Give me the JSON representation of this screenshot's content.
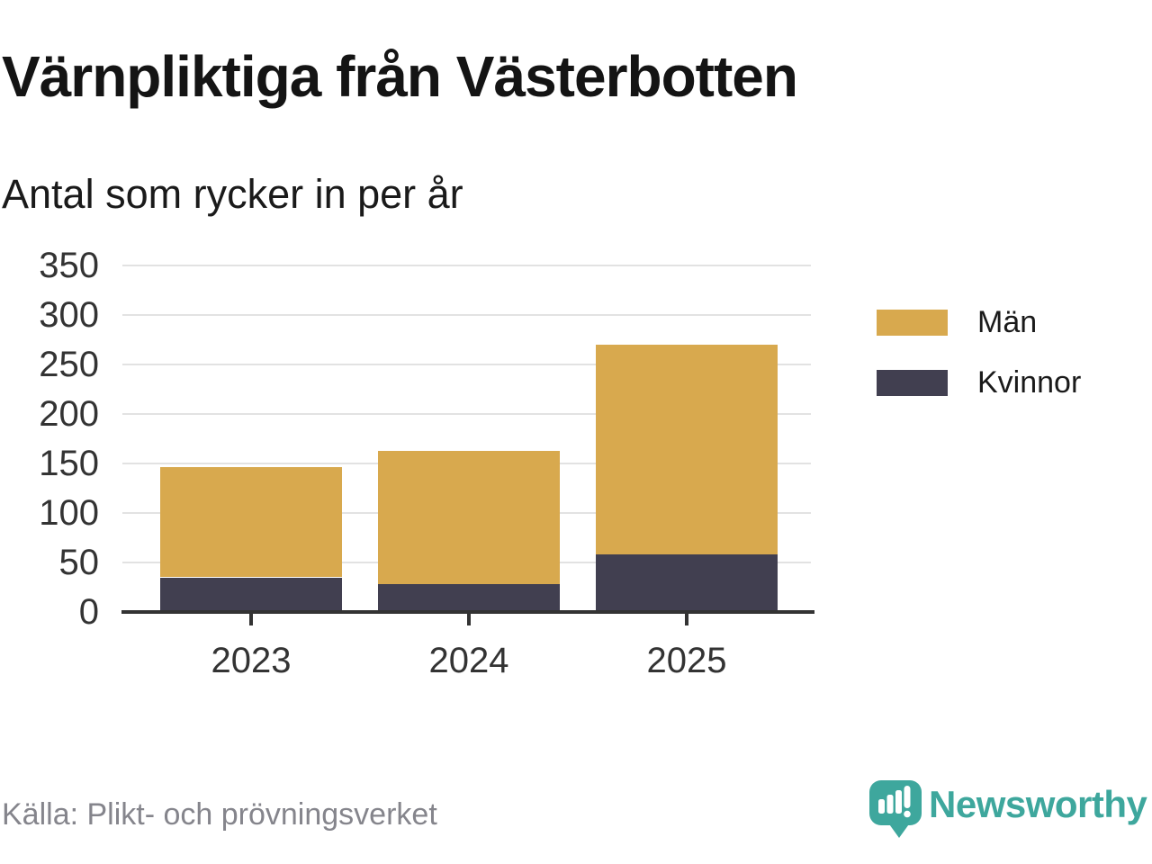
{
  "header": {
    "title": "Värnpliktiga från Västerbotten",
    "subtitle": "Antal som rycker in per år"
  },
  "chart_data": {
    "type": "bar",
    "stacked": true,
    "title": "Värnpliktiga från Västerbotten",
    "subtitle": "Antal som rycker in per år",
    "categories": [
      "2023",
      "2024",
      "2025"
    ],
    "series": [
      {
        "name": "Kvinnor",
        "color": "#413f50",
        "values": [
          35,
          28,
          58
        ]
      },
      {
        "name": "Män",
        "color": "#d8a94e",
        "values": [
          111,
          135,
          212
        ]
      }
    ],
    "stack_totals": [
      146,
      163,
      270
    ],
    "xlabel": "",
    "ylabel": "",
    "ylim": [
      0,
      350
    ],
    "yticks": [
      0,
      50,
      100,
      150,
      200,
      250,
      300,
      350
    ],
    "grid": true,
    "legend_position": "right"
  },
  "legend": {
    "items": [
      {
        "label": "Män",
        "color": "#d8a94e"
      },
      {
        "label": "Kvinnor",
        "color": "#413f50"
      }
    ]
  },
  "footer": {
    "source": "Källa: Plikt- och prövningsverket",
    "brand": "Newsworthy"
  },
  "colors": {
    "men": "#d8a94e",
    "women": "#413f50",
    "brand_teal": "#3ea79d",
    "axis": "#333333",
    "gridline": "#e2e2e2",
    "text_dark": "#1a1a1a",
    "text_muted": "#85858c"
  }
}
